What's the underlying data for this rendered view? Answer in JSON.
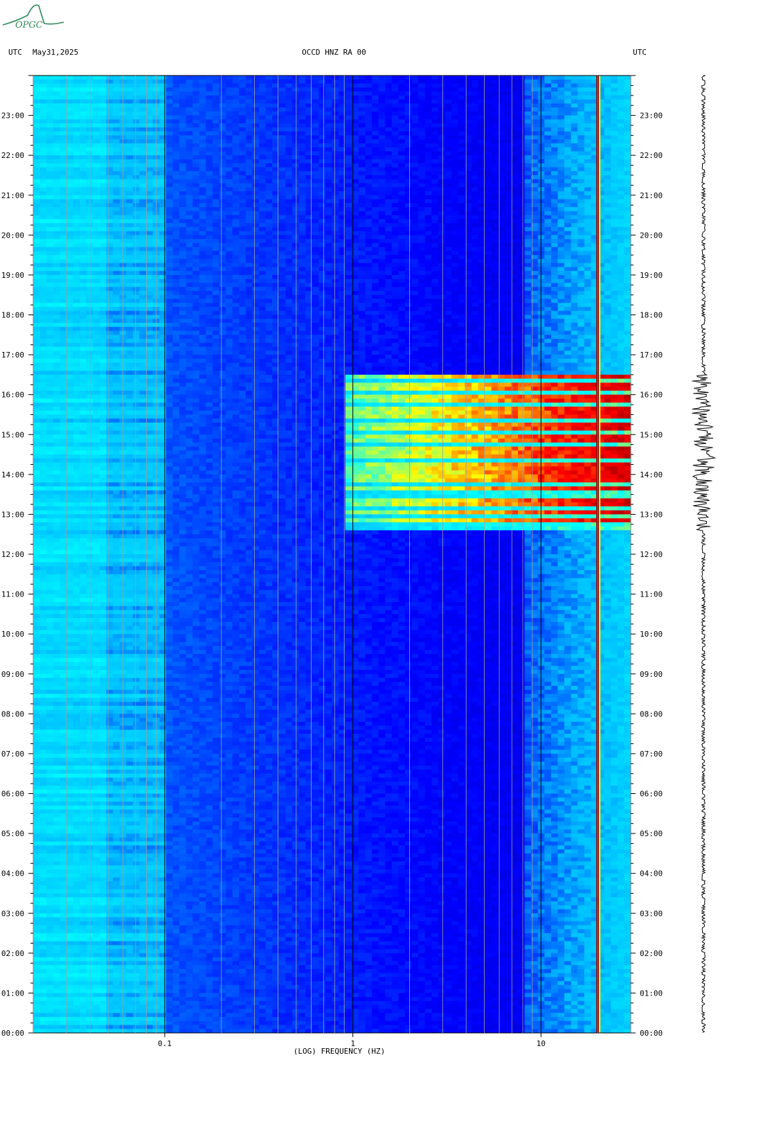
{
  "header": {
    "timezone_left": "UTC",
    "date": "May31,2025",
    "station": "OCCD HNZ RA 00",
    "timezone_right": "UTC"
  },
  "logo": {
    "text": "OPGC",
    "color": "#2e8b57"
  },
  "chart_data": {
    "type": "heatmap",
    "subtype": "spectrogram",
    "xlabel": "(LOG) FREQUENCY (HZ)",
    "x_scale": "log",
    "xlim": [
      0.02,
      30
    ],
    "x_ticks": [
      0.1,
      1,
      10
    ],
    "x_tick_labels": [
      "0.1",
      "1",
      "10"
    ],
    "y_ticks_hours": [
      0,
      1,
      2,
      3,
      4,
      5,
      6,
      7,
      8,
      9,
      10,
      11,
      12,
      13,
      14,
      15,
      16,
      17,
      18,
      19,
      20,
      21,
      22,
      23
    ],
    "y_tick_labels": [
      "00:00",
      "01:00",
      "02:00",
      "03:00",
      "04:00",
      "05:00",
      "06:00",
      "07:00",
      "08:00",
      "09:00",
      "10:00",
      "11:00",
      "12:00",
      "13:00",
      "14:00",
      "15:00",
      "16:00",
      "17:00",
      "18:00",
      "19:00",
      "20:00",
      "21:00",
      "22:00",
      "23:00"
    ],
    "ylim_hours": [
      0,
      24
    ],
    "colormap": [
      "#00008b",
      "#0000ff",
      "#00bfff",
      "#00ffff",
      "#ffff00",
      "#ff0000",
      "#8b0000"
    ],
    "event_window_hours": [
      12.6,
      16.5
    ],
    "event_freq_range_hz": [
      0.9,
      30
    ],
    "persistent_line_hz": 20,
    "trace_label": "seismogram"
  }
}
